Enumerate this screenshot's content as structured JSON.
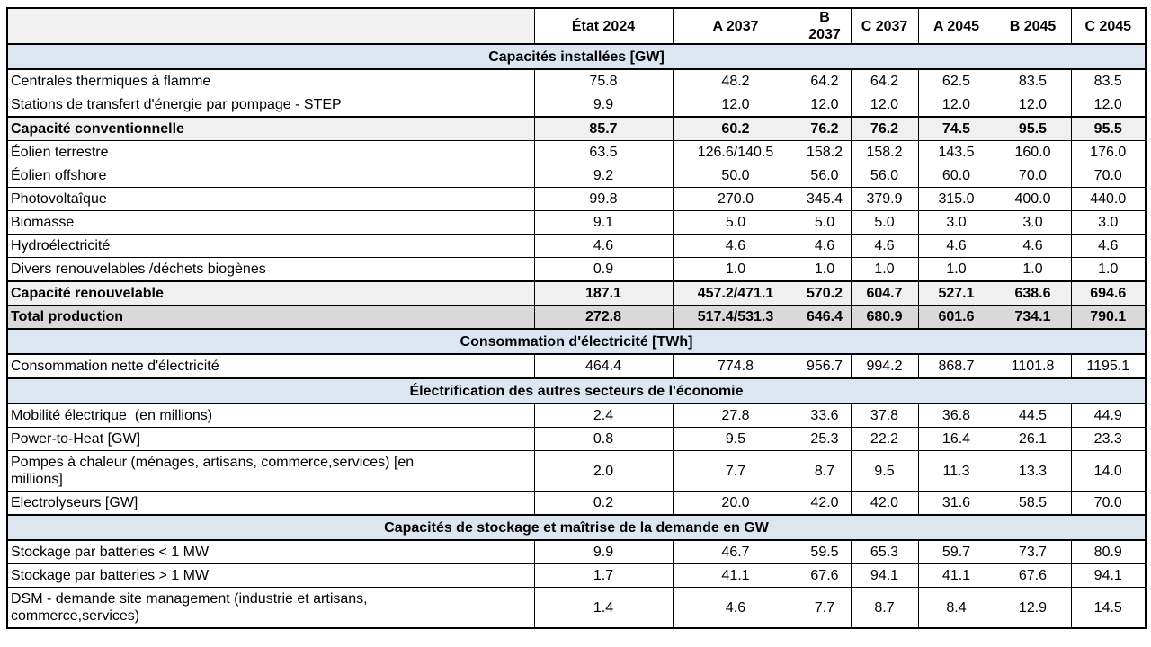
{
  "colors": {
    "section-bg": "#dce6f1",
    "subtotal-bg": "#f0f0f0",
    "total-bg": "#d9d9d9",
    "corner-bg": "#f2f2f2",
    "border": "#000000"
  },
  "chart_data": {
    "type": "table",
    "columns": [
      "",
      "État 2024",
      "A 2037",
      "B 2037",
      "C 2037",
      "A 2045",
      "B 2045",
      "C 2045"
    ],
    "rows": [
      {
        "type": "section",
        "label": "Capacités installées [GW]"
      },
      {
        "type": "data",
        "label": "Centrales thermiques à flamme",
        "values": [
          "75.8",
          "48.2",
          "64.2",
          "64.2",
          "62.5",
          "83.5",
          "83.5"
        ]
      },
      {
        "type": "data",
        "label": "Stations de transfert d'énergie par pompage - STEP",
        "values": [
          "9.9",
          "12.0",
          "12.0",
          "12.0",
          "12.0",
          "12.0",
          "12.0"
        ]
      },
      {
        "type": "subtotal",
        "label": "Capacité conventionnelle",
        "values": [
          "85.7",
          "60.2",
          "76.2",
          "76.2",
          "74.5",
          "95.5",
          "95.5"
        ]
      },
      {
        "type": "data",
        "label": "Éolien terrestre",
        "values": [
          "63.5",
          "126.6/140.5",
          "158.2",
          "158.2",
          "143.5",
          "160.0",
          "176.0"
        ]
      },
      {
        "type": "data",
        "label": "Éolien offshore",
        "values": [
          "9.2",
          "50.0",
          "56.0",
          "56.0",
          "60.0",
          "70.0",
          "70.0"
        ]
      },
      {
        "type": "data",
        "label": "Photovoltaîque",
        "values": [
          "99.8",
          "270.0",
          "345.4",
          "379.9",
          "315.0",
          "400.0",
          "440.0"
        ]
      },
      {
        "type": "data",
        "label": "Biomasse",
        "values": [
          "9.1",
          "5.0",
          "5.0",
          "5.0",
          "3.0",
          "3.0",
          "3.0"
        ]
      },
      {
        "type": "data",
        "label": "Hydroélectricité",
        "values": [
          "4.6",
          "4.6",
          "4.6",
          "4.6",
          "4.6",
          "4.6",
          "4.6"
        ]
      },
      {
        "type": "data",
        "label": "Divers renouvelables /déchets biogènes",
        "values": [
          "0.9",
          "1.0",
          "1.0",
          "1.0",
          "1.0",
          "1.0",
          "1.0"
        ]
      },
      {
        "type": "subtotal",
        "label": "Capacité renouvelable",
        "values": [
          "187.1",
          "457.2/471.1",
          "570.2",
          "604.7",
          "527.1",
          "638.6",
          "694.6"
        ]
      },
      {
        "type": "total",
        "label": "Total production",
        "values": [
          "272.8",
          "517.4/531.3",
          "646.4",
          "680.9",
          "601.6",
          "734.1",
          "790.1"
        ]
      },
      {
        "type": "section",
        "label": "Consommation d'électricité [TWh]"
      },
      {
        "type": "data",
        "label": "Consommation nette d'électricité",
        "values": [
          "464.4",
          "774.8",
          "956.7",
          "994.2",
          "868.7",
          "1101.8",
          "1195.1"
        ]
      },
      {
        "type": "section",
        "label": "Électrification des autres secteurs de l'économie"
      },
      {
        "type": "data",
        "label": "Mobilité électrique  (en millions)",
        "values": [
          "2.4",
          "27.8",
          "33.6",
          "37.8",
          "36.8",
          "44.5",
          "44.9"
        ]
      },
      {
        "type": "data",
        "label": "Power-to-Heat [GW]",
        "values": [
          "0.8",
          "9.5",
          "25.3",
          "22.2",
          "16.4",
          "26.1",
          "23.3"
        ]
      },
      {
        "type": "data",
        "tall": true,
        "label": "Pompes à chaleur (ménages, artisans, commerce,services) [en\nmillions]",
        "values": [
          "2.0",
          "7.7",
          "8.7",
          "9.5",
          "11.3",
          "13.3",
          "14.0"
        ]
      },
      {
        "type": "data",
        "label": "Electrolyseurs [GW]",
        "values": [
          "0.2",
          "20.0",
          "42.0",
          "42.0",
          "31.6",
          "58.5",
          "70.0"
        ]
      },
      {
        "type": "section",
        "label": "Capacités de stockage et maîtrise de la demande en GW"
      },
      {
        "type": "data",
        "label": "Stockage par batteries < 1 MW",
        "values": [
          "9.9",
          "46.7",
          "59.5",
          "65.3",
          "59.7",
          "73.7",
          "80.9"
        ]
      },
      {
        "type": "data",
        "label": "Stockage par batteries > 1 MW",
        "values": [
          "1.7",
          "41.1",
          "67.6",
          "94.1",
          "41.1",
          "67.6",
          "94.1"
        ]
      },
      {
        "type": "data",
        "tall": true,
        "label": "DSM - demande site management (industrie et artisans,\ncommerce,services)",
        "values": [
          "1.4",
          "4.6",
          "7.7",
          "8.7",
          "8.4",
          "12.9",
          "14.5"
        ]
      }
    ]
  }
}
